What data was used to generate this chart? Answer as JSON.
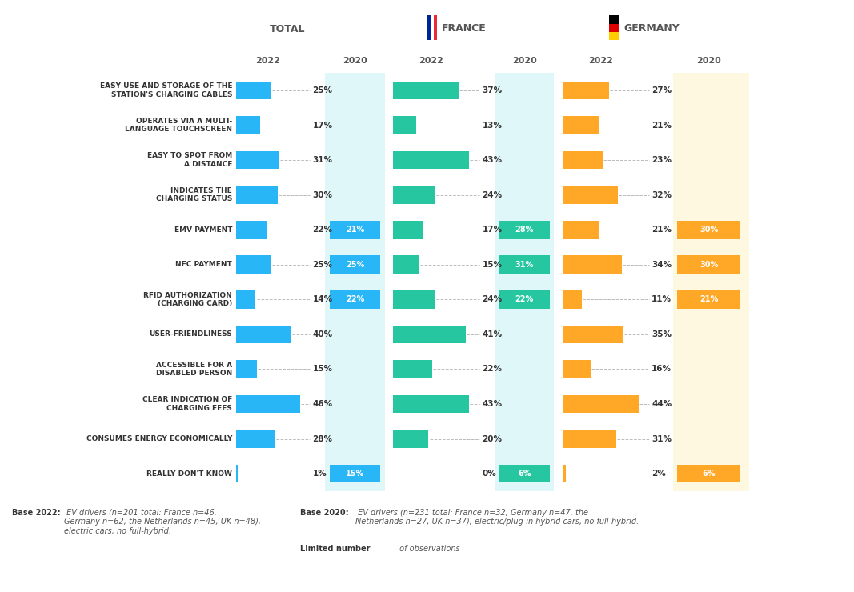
{
  "categories": [
    "EASY USE AND STORAGE OF THE\nSTATION'S CHARGING CABLES",
    "OPERATES VIA A MULTI-\nLANGUAGE TOUCHSCREEN",
    "EASY TO SPOT FROM\nA DISTANCE",
    "INDICATES THE\nCHARGING STATUS",
    "EMV PAYMENT",
    "NFC PAYMENT",
    "RFID AUTHORIZATION\n(CHARGING CARD)",
    "USER-FRIENDLINESS",
    "ACCESSIBLE FOR A\nDISABLED PERSON",
    "CLEAR INDICATION OF\nCHARGING FEES",
    "CONSUMES ENERGY ECONOMICALLY",
    "REALLY DON'T KNOW"
  ],
  "total_2022": [
    25,
    17,
    31,
    30,
    22,
    25,
    14,
    40,
    15,
    46,
    28,
    1
  ],
  "total_2020": [
    null,
    null,
    null,
    null,
    21,
    25,
    22,
    null,
    null,
    null,
    null,
    15
  ],
  "france_2022": [
    37,
    13,
    43,
    24,
    17,
    15,
    24,
    41,
    22,
    43,
    20,
    0
  ],
  "france_2020": [
    null,
    null,
    null,
    null,
    28,
    31,
    22,
    null,
    null,
    null,
    null,
    6
  ],
  "germany_2022": [
    27,
    21,
    23,
    32,
    21,
    34,
    11,
    35,
    16,
    44,
    31,
    2
  ],
  "germany_2020": [
    null,
    null,
    null,
    null,
    30,
    30,
    21,
    null,
    null,
    null,
    null,
    6
  ],
  "color_total_2022": "#29B6F6",
  "color_france_2022": "#26C6A0",
  "color_germany_2022": "#FFA726",
  "bg_total_2020": "#E0F7FA",
  "bg_france_2020": "#E0F7FA",
  "bg_germany_2020": "#FFF8E1"
}
